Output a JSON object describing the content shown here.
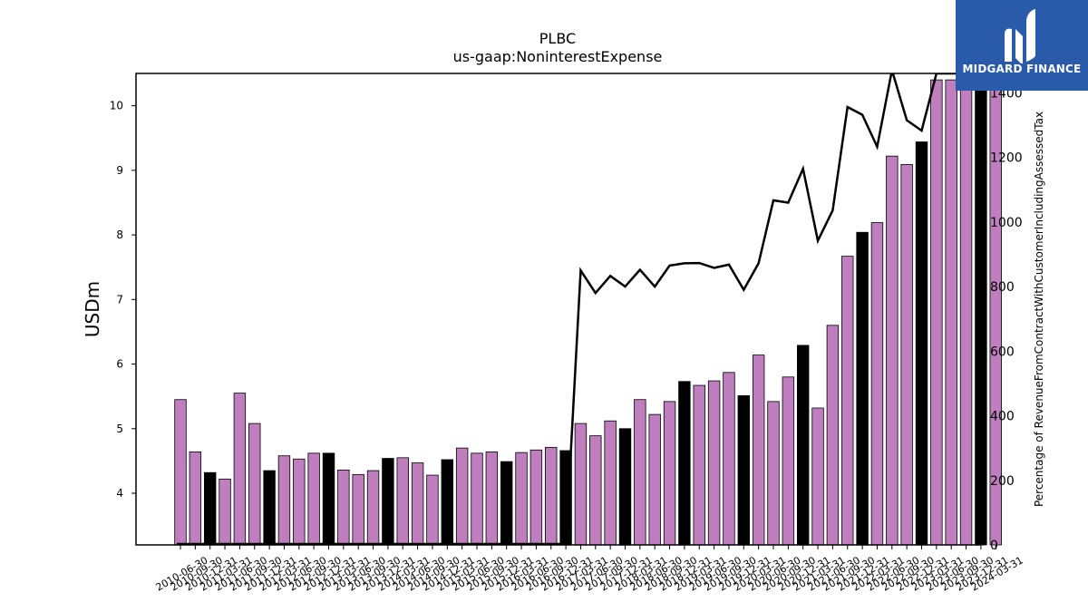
{
  "chart_data": {
    "type": "bar+line",
    "title": "PLBC",
    "subtitle": "us-gaap:NoninterestExpense",
    "ylabel_left": "USDm",
    "ylabel_right": "Percentage of RevenueFromContractWithCustomerIncludingAssessedTax",
    "ylim_left": [
      3.2,
      10.5
    ],
    "ylim_right": [
      0,
      1460
    ],
    "yticks_left": [
      4,
      5,
      6,
      7,
      8,
      9,
      10
    ],
    "yticks_right": [
      0,
      200,
      400,
      600,
      800,
      1000,
      1200,
      1400
    ],
    "bar_colors": {
      "q4": "#000000",
      "other": "#bf7fbf"
    },
    "line_color": "#000000",
    "categories": [
      "2010-06-30",
      "2010-09-30",
      "2010-12-31",
      "2011-03-31",
      "2011-06-30",
      "2011-09-30",
      "2011-12-31",
      "2012-03-31",
      "2012-06-30",
      "2012-09-30",
      "2012-12-31",
      "2013-03-31",
      "2013-06-30",
      "2013-09-30",
      "2013-12-31",
      "2014-03-31",
      "2014-06-30",
      "2014-09-30",
      "2014-12-31",
      "2015-03-31",
      "2015-06-30",
      "2015-09-30",
      "2015-12-31",
      "2016-03-31",
      "2016-06-30",
      "2016-09-30",
      "2016-12-31",
      "2017-03-31",
      "2017-06-30",
      "2017-09-30",
      "2017-12-31",
      "2018-03-31",
      "2018-06-30",
      "2018-09-30",
      "2018-12-31",
      "2019-03-31",
      "2019-06-30",
      "2019-09-30",
      "2019-12-31",
      "2020-03-31",
      "2020-06-30",
      "2020-09-30",
      "2020-12-31",
      "2021-03-31",
      "2021-06-30",
      "2021-09-30",
      "2021-12-31",
      "2022-03-31",
      "2022-06-30",
      "2022-09-30",
      "2022-12-31",
      "2023-03-31",
      "2023-06-30",
      "2023-09-30",
      "2023-12-31",
      "2024-03-31"
    ],
    "xtick_labels": [
      "2010-06-30",
      "2010-09-30",
      "2010-12-31",
      "2011-03-31",
      "2011-06-30",
      "2011-09-30",
      "2011-12-31",
      "2012-03-31",
      "2012-06-30",
      "2012-09-30",
      "2012-12-31",
      "2013-03-31",
      "2013-06-30",
      "2013-09-30",
      "2013-12-31",
      "2014-03-31",
      "2014-06-30",
      "2014-09-30",
      "2014-12-31",
      "2015-03-31",
      "2015-06-30",
      "2015-09-30",
      "2015-12-31",
      "2016-03-31",
      "2016-06-30",
      "2016-09-30",
      "2016-12-31",
      "2017-03-31",
      "2017-06-30",
      "2017-09-30",
      "2017-12-31",
      "2018-03-31",
      "2018-06-30",
      "2018-09-30",
      "2018-12-31",
      "2019-03-31",
      "2019-06-30",
      "2019-09-30",
      "2019-12-31",
      "2020-03-31",
      "2020-06-30",
      "2020-09-30",
      "2020-12-31",
      "2021-03-31",
      "2021-06-30",
      "2021-09-30",
      "2021-12-31",
      "2022-03-31",
      "2022-06-30",
      "2022-09-30",
      "2022-12-31",
      "2023-03-31",
      "2023-06-30",
      "2023-09-30",
      "2023-12-31",
      "2024-03-31"
    ],
    "bar_values": [
      5.45,
      4.64,
      4.32,
      4.22,
      5.55,
      5.08,
      4.35,
      4.58,
      4.53,
      4.62,
      4.62,
      4.36,
      4.29,
      4.35,
      4.54,
      4.55,
      4.47,
      4.28,
      4.52,
      4.7,
      4.62,
      4.64,
      4.49,
      4.63,
      4.67,
      4.71,
      4.66,
      5.08,
      4.89,
      5.12,
      5.0,
      5.45,
      5.22,
      5.42,
      5.73,
      5.67,
      5.74,
      5.87,
      5.51,
      6.14,
      5.42,
      5.8,
      6.29,
      5.32,
      6.6,
      7.67,
      8.04,
      8.19,
      9.22,
      9.09,
      9.44,
      10.4,
      10.4,
      10.4,
      10.4,
      10.4
    ],
    "bar_is_q4": [
      false,
      false,
      true,
      false,
      false,
      false,
      true,
      false,
      false,
      false,
      true,
      false,
      false,
      false,
      true,
      false,
      false,
      false,
      true,
      false,
      false,
      false,
      true,
      false,
      false,
      false,
      true,
      false,
      false,
      false,
      true,
      false,
      false,
      false,
      true,
      false,
      false,
      false,
      true,
      false,
      false,
      false,
      true,
      false,
      false,
      false,
      true,
      false,
      false,
      false,
      true,
      false,
      false,
      false,
      true,
      false
    ],
    "line_values": [
      null,
      null,
      null,
      null,
      null,
      null,
      null,
      null,
      null,
      null,
      null,
      null,
      null,
      null,
      null,
      null,
      null,
      null,
      null,
      null,
      null,
      null,
      null,
      null,
      null,
      null,
      null,
      850,
      780,
      833,
      800,
      852,
      800,
      865,
      872,
      873,
      858,
      868,
      790,
      872,
      1067,
      1060,
      1165,
      942,
      1036,
      1356,
      1332,
      1233,
      1470,
      1315,
      1283,
      1460,
      1460,
      1460,
      1460,
      1460
    ],
    "logo_text": "MIDGARD FINANCE"
  }
}
